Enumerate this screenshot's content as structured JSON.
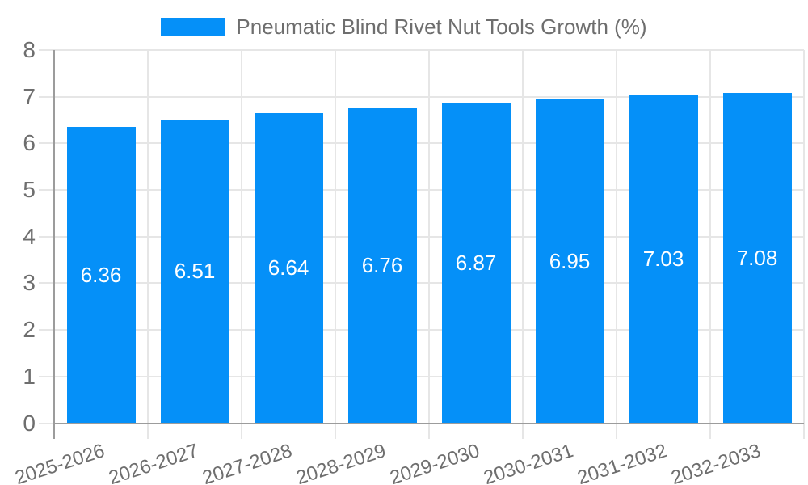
{
  "chart_data": {
    "type": "bar",
    "title": "Pneumatic Blind Rivet Nut Tools Growth (%)",
    "legend": {
      "label": "Pneumatic Blind Rivet Nut Tools Growth (%)",
      "position": "top"
    },
    "categories": [
      "2025-2026",
      "2026-2027",
      "2027-2028",
      "2028-2029",
      "2029-2030",
      "2030-2031",
      "2031-2032",
      "2032-2033"
    ],
    "values": [
      6.36,
      6.51,
      6.64,
      6.76,
      6.87,
      6.95,
      7.03,
      7.08
    ],
    "value_labels": [
      "6.36",
      "6.51",
      "6.64",
      "6.76",
      "6.87",
      "6.95",
      "7.03",
      "7.08"
    ],
    "xlabel": "",
    "ylabel": "",
    "ylim": [
      0,
      8
    ],
    "ytick_interval": 1,
    "ytick_labels": [
      "0",
      "1",
      "2",
      "3",
      "4",
      "5",
      "6",
      "7",
      "8"
    ],
    "grid": true,
    "x_tick_rotation_deg": -18,
    "colors": {
      "bar": "#0590f8",
      "bar_label_text": "#ffffff",
      "tick_text": "#6e6e6e",
      "gridline": "#e6e6e6",
      "axis_border": "#9c9c9c",
      "background": "#ffffff"
    }
  }
}
